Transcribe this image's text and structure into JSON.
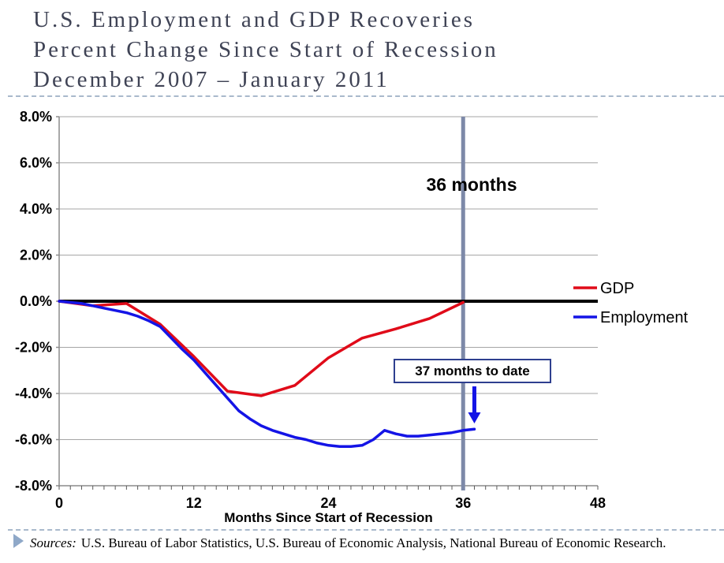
{
  "slide": {
    "title_lines": [
      "U.S. Employment and GDP Recoveries",
      "Percent Change Since Start of Recession",
      "December 2007 – January 2011"
    ],
    "footer": {
      "sources_label": "Sources:",
      "sources_text": "U.S. Bureau of Labor Statistics, U.S. Bureau of Economic Analysis, National Bureau of Economic Research."
    }
  },
  "colors": {
    "title": "#3f4355",
    "gdp": "#e00b19",
    "employment": "#1414e6",
    "vertical_line": "#7d89a8",
    "gridline": "#a6a6a6",
    "axis": "#8c8c8c",
    "tick": "#595959",
    "zero_line": "#000000",
    "annotation_border": "#2e3f8f",
    "separator": "#a9b9cc",
    "footer_triangle": "#8fa8c8"
  },
  "chart_data": {
    "type": "line",
    "title": "U.S. Employment and GDP Recoveries, Percent Change Since Start of Recession",
    "xlabel": "Months Since Start of Recession",
    "ylabel": "",
    "xlim": [
      0,
      48
    ],
    "ylim": [
      -8,
      8
    ],
    "x_ticks": [
      0,
      12,
      24,
      36,
      48
    ],
    "y_ticks": [
      8,
      6,
      4,
      2,
      0,
      -2,
      -4,
      -6,
      -8
    ],
    "grid": true,
    "zero_line": true,
    "legend_position": "right",
    "series": [
      {
        "name": "GDP",
        "color": "#e00b19",
        "x": [
          0,
          3,
          6,
          9,
          12,
          15,
          18,
          21,
          24,
          27,
          30,
          33,
          36
        ],
        "values": [
          0.0,
          -0.2,
          -0.1,
          -1.0,
          -2.4,
          -3.9,
          -4.1,
          -3.65,
          -2.45,
          -1.6,
          -1.2,
          -0.75,
          -0.05
        ]
      },
      {
        "name": "Employment",
        "color": "#1414e6",
        "x": [
          0,
          1,
          2,
          3,
          4,
          5,
          6,
          7,
          8,
          9,
          10,
          11,
          12,
          13,
          14,
          15,
          16,
          17,
          18,
          19,
          20,
          21,
          22,
          23,
          24,
          25,
          26,
          27,
          28,
          29,
          30,
          31,
          32,
          33,
          34,
          35,
          36,
          37
        ],
        "values": [
          0.0,
          -0.05,
          -0.1,
          -0.2,
          -0.3,
          -0.4,
          -0.5,
          -0.65,
          -0.85,
          -1.1,
          -1.6,
          -2.1,
          -2.55,
          -3.1,
          -3.65,
          -4.2,
          -4.75,
          -5.1,
          -5.4,
          -5.6,
          -5.75,
          -5.9,
          -6.0,
          -6.15,
          -6.25,
          -6.3,
          -6.3,
          -6.25,
          -6.0,
          -5.6,
          -5.75,
          -5.85,
          -5.85,
          -5.8,
          -5.75,
          -5.7,
          -5.6,
          -5.55
        ]
      }
    ],
    "annotations": {
      "vline": {
        "x": 36,
        "label": "36 months"
      },
      "callout": {
        "text": "37 months to date",
        "arrow_x": 37,
        "arrow_to_y": -5.3
      }
    }
  }
}
